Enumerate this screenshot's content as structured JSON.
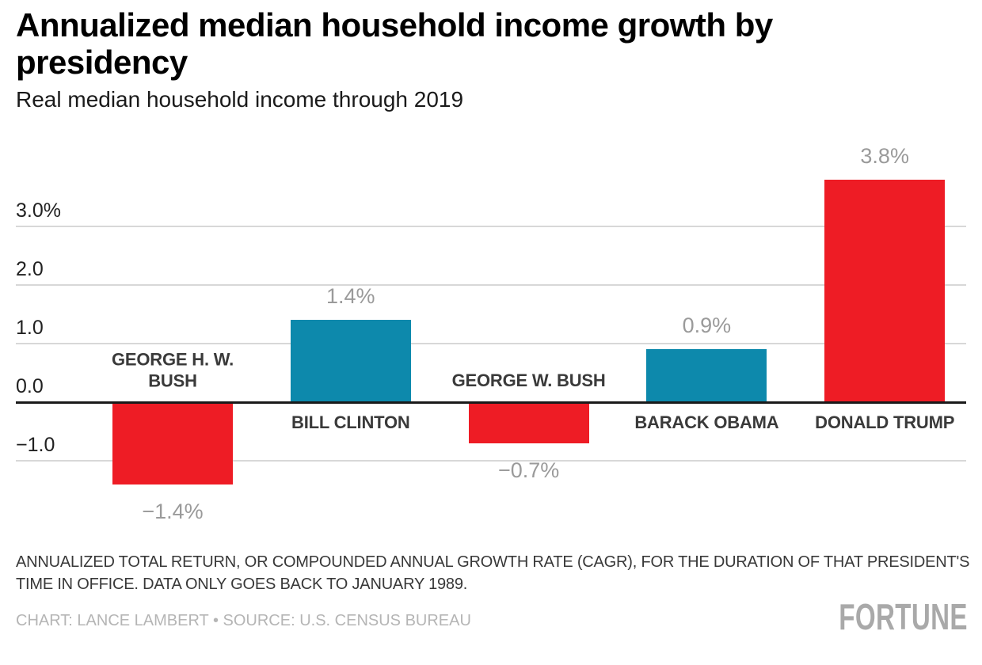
{
  "chart_data": {
    "type": "bar",
    "title": "Annualized median household income growth by presidency",
    "subtitle": "Real median household income through 2019",
    "categories": [
      "GEORGE H. W. BUSH",
      "BILL CLINTON",
      "GEORGE W. BUSH",
      "BARACK OBAMA",
      "DONALD TRUMP"
    ],
    "values": [
      -1.4,
      1.4,
      -0.7,
      0.9,
      3.8
    ],
    "value_labels": [
      "−1.4%",
      "1.4%",
      "−0.7%",
      "0.9%",
      "3.8%"
    ],
    "bar_colors": [
      "#ee1c25",
      "#0d89ac",
      "#ee1c25",
      "#0d89ac",
      "#ee1c25"
    ],
    "yticks": [
      {
        "value": 3,
        "label": "3.0%"
      },
      {
        "value": 2,
        "label": "2.0"
      },
      {
        "value": 1,
        "label": "1.0"
      },
      {
        "value": 0,
        "label": "0.0"
      },
      {
        "value": -1,
        "label": "−1.0"
      }
    ],
    "ylim": [
      -2.3,
      4.6
    ],
    "xlabel": "",
    "ylabel": "",
    "grid": "horizontal",
    "legend": "none"
  },
  "colors": {
    "republican_red": "#ee1c25",
    "democrat_blue": "#0d89ac",
    "gridline": "#d8d8d8",
    "zero_line": "#1a1a1a",
    "value_label": "#9a9a9a",
    "name_label": "#3a3a3a"
  },
  "footer": {
    "note_lines": [
      "ANNUALIZED TOTAL RETURN, OR COMPOUNDED ANNUAL GROWTH RATE (CAGR), FOR THE DURATION OF THAT PRESIDENT'S",
      "TIME IN OFFICE. DATA ONLY GOES BACK TO JANUARY 1989."
    ],
    "credit": "CHART: LANCE LAMBERT • SOURCE: U.S. CENSUS BUREAU",
    "brand": "FORTUNE"
  }
}
